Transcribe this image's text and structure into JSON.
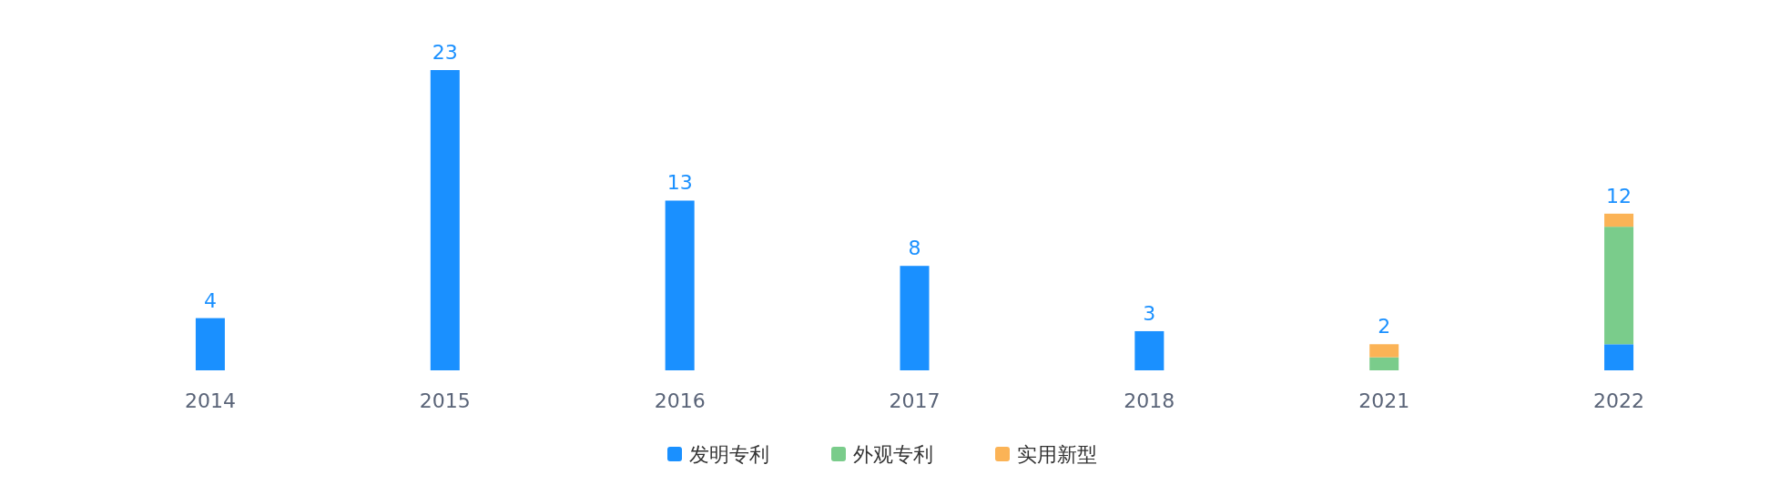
{
  "chart_data": {
    "type": "bar",
    "stacked": true,
    "legend": "bottom",
    "categories": [
      "2014",
      "2015",
      "2016",
      "2017",
      "2018",
      "2021",
      "2022"
    ],
    "series": [
      {
        "name": "发明专利",
        "color": "#1a90ff",
        "values": [
          4,
          23,
          13,
          8,
          3,
          null,
          2
        ],
        "value_labels": [
          "4",
          "23",
          "13",
          "8",
          "3",
          null,
          null
        ]
      },
      {
        "name": "外观专利",
        "color": "#7acc8b",
        "values": [
          null,
          null,
          null,
          null,
          null,
          1,
          9
        ]
      },
      {
        "name": "实用新型",
        "color": "#fbb356",
        "values": [
          null,
          null,
          null,
          null,
          null,
          1,
          1
        ]
      }
    ],
    "totals": [
      null,
      null,
      null,
      null,
      null,
      "2",
      "12"
    ]
  }
}
